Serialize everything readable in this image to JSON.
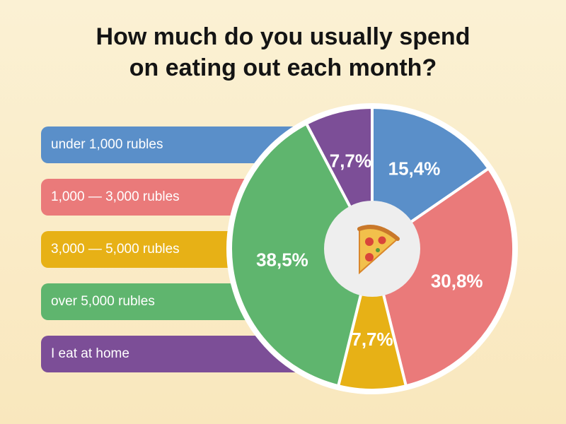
{
  "title_line1": "How much do you usually spend",
  "title_line2": "on eating out each month?",
  "center_icon": "pizza-icon",
  "chart_data": {
    "type": "pie",
    "title": "How much do you usually spend on eating out each month?",
    "categories": [
      "under 1,000 rubles",
      "1,000 — 3,000 rubles",
      "3,000 — 5,000 rubles",
      "over 5,000 rubles",
      "I eat at home"
    ],
    "values": [
      15.4,
      30.8,
      7.7,
      38.5,
      7.7
    ],
    "labels": [
      "15,4%",
      "30,8%",
      "7,7%",
      "38,5%",
      "7,7%"
    ],
    "colors": [
      "#5a8fc9",
      "#ea7a7a",
      "#e7b116",
      "#5fb56e",
      "#7c4e97"
    ],
    "legend_position": "left"
  }
}
